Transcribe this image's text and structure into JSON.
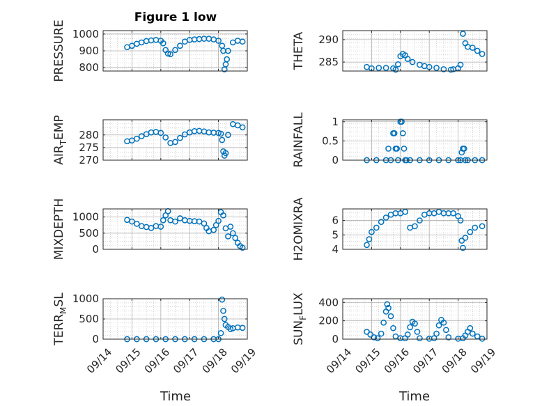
{
  "figure": {
    "title": "Figure 1 low",
    "marker_color": "#0072bd",
    "grid_color": "#b0b0b0",
    "axis_color": "#262626"
  },
  "chart_data": [
    {
      "type": "scatter",
      "ylabel": "PRESSURE",
      "ylabel_sub": "",
      "ylabel_tail": "",
      "ylim": [
        780,
        1020
      ],
      "yticks": [
        "800",
        "900",
        "1000"
      ],
      "ytick_values": [
        800,
        900,
        1000
      ],
      "xlim": [
        "09/14",
        "09/19"
      ],
      "grid": true,
      "x": [
        "09/14 20:00",
        "09/15 00:00",
        "09/15 04:00",
        "09/15 08:00",
        "09/15 12:00",
        "09/15 16:00",
        "09/15 20:00",
        "09/16 00:00",
        "09/16 02:00",
        "09/16 04:00",
        "09/16 06:00",
        "09/16 08:00",
        "09/16 12:00",
        "09/16 16:00",
        "09/16 20:00",
        "09/17 00:00",
        "09/17 04:00",
        "09/17 08:00",
        "09/17 12:00",
        "09/17 16:00",
        "09/17 20:00",
        "09/18 00:00",
        "09/18 03:00",
        "09/18 04:00",
        "09/18 05:00",
        "09/18 06:00",
        "09/18 07:00",
        "09/18 08:00",
        "09/18 12:00",
        "09/18 16:00",
        "09/18 20:00"
      ],
      "y": [
        922,
        930,
        942,
        950,
        958,
        962,
        965,
        960,
        945,
        905,
        884,
        880,
        905,
        930,
        955,
        965,
        968,
        970,
        972,
        972,
        968,
        960,
        930,
        900,
        790,
        820,
        850,
        900,
        950,
        960,
        955
      ]
    },
    {
      "type": "scatter",
      "ylabel": "THETA",
      "ylabel_sub": "",
      "ylabel_tail": "",
      "ylim": [
        283,
        292
      ],
      "yticks": [
        "285",
        "290"
      ],
      "ytick_values": [
        285,
        290
      ],
      "xlim": [
        "09/14",
        "09/19"
      ],
      "grid": true,
      "x": [
        "09/14 20:00",
        "09/15 00:00",
        "09/15 06:00",
        "09/15 12:00",
        "09/15 18:00",
        "09/15 20:00",
        "09/15 22:00",
        "09/16 00:00",
        "09/16 02:00",
        "09/16 04:00",
        "09/16 06:00",
        "09/16 10:00",
        "09/16 16:00",
        "09/16 20:00",
        "09/17 00:00",
        "09/17 06:00",
        "09/17 12:00",
        "09/17 18:00",
        "09/17 20:00",
        "09/18 00:00",
        "09/18 02:00",
        "09/18 04:00",
        "09/18 06:00",
        "09/18 08:00",
        "09/18 12:00",
        "09/18 16:00",
        "09/18 20:00"
      ],
      "y": [
        283.9,
        283.6,
        283.7,
        283.7,
        283.6,
        283.3,
        284.5,
        286.3,
        286.8,
        286.5,
        285.7,
        285.0,
        284.4,
        284.1,
        283.9,
        283.7,
        283.4,
        283.3,
        283.4,
        283.6,
        284.4,
        291.3,
        289.2,
        288.4,
        288.2,
        287.5,
        286.8
      ]
    },
    {
      "type": "scatter",
      "ylabel": "AIR",
      "ylabel_sub": "T",
      "ylabel_tail": "EMP",
      "ylim": [
        270,
        286
      ],
      "yticks": [
        "270",
        "275",
        "280"
      ],
      "ytick_values": [
        270,
        275,
        280
      ],
      "xlim": [
        "09/14",
        "09/19"
      ],
      "grid": true,
      "x": [
        "09/14 20:00",
        "09/15 00:00",
        "09/15 04:00",
        "09/15 08:00",
        "09/15 12:00",
        "09/15 16:00",
        "09/15 20:00",
        "09/16 00:00",
        "09/16 04:00",
        "09/16 08:00",
        "09/16 12:00",
        "09/16 16:00",
        "09/16 20:00",
        "09/17 00:00",
        "09/17 04:00",
        "09/17 08:00",
        "09/17 12:00",
        "09/17 16:00",
        "09/17 20:00",
        "09/18 00:00",
        "09/18 02:00",
        "09/18 03:00",
        "09/18 04:00",
        "09/18 05:00",
        "09/18 06:00",
        "09/18 08:00",
        "09/18 12:00",
        "09/18 16:00",
        "09/18 20:00"
      ],
      "y": [
        277.5,
        277.8,
        278.5,
        279.5,
        280.3,
        281.0,
        281.2,
        280.8,
        279.0,
        276.8,
        277.2,
        278.8,
        280.2,
        281.0,
        281.5,
        281.6,
        281.4,
        281.0,
        280.9,
        280.8,
        280.5,
        278.0,
        273.5,
        271.8,
        272.8,
        280.0,
        284.3,
        283.8,
        283.0
      ]
    },
    {
      "type": "scatter",
      "ylabel": "RAINFALL",
      "ylabel_sub": "",
      "ylabel_tail": "",
      "ylim": [
        0,
        1.05
      ],
      "yticks": [
        "0",
        "0.5",
        "1"
      ],
      "ytick_values": [
        0,
        0.5,
        1
      ],
      "xlim": [
        "09/14",
        "09/19"
      ],
      "grid": true,
      "x": [
        "09/14 20:00",
        "09/15 04:00",
        "09/15 12:00",
        "09/15 14:00",
        "09/15 16:00",
        "09/15 18:00",
        "09/15 19:00",
        "09/15 20:00",
        "09/15 21:00",
        "09/15 22:00",
        "09/16 00:00",
        "09/16 01:00",
        "09/16 02:00",
        "09/16 03:00",
        "09/16 04:00",
        "09/16 05:00",
        "09/16 08:00",
        "09/16 16:00",
        "09/17 00:00",
        "09/17 08:00",
        "09/17 16:00",
        "09/18 00:00",
        "09/18 02:00",
        "09/18 03:00",
        "09/18 04:00",
        "09/18 05:00",
        "09/18 06:00",
        "09/18 08:00",
        "09/18 14:00",
        "09/18 20:00"
      ],
      "y": [
        0,
        0,
        0,
        0.3,
        0,
        0.7,
        0.7,
        0.3,
        0.3,
        0,
        1,
        1,
        0.7,
        0.3,
        0,
        0,
        0,
        0,
        0,
        0,
        0,
        0,
        0,
        0.2,
        0.3,
        0.3,
        0,
        0,
        0,
        0
      ]
    },
    {
      "type": "scatter",
      "ylabel": "MIXDEPTH",
      "ylabel_sub": "",
      "ylabel_tail": "",
      "ylim": [
        0,
        1250
      ],
      "yticks": [
        "0",
        "500",
        "1000"
      ],
      "ytick_values": [
        0,
        500,
        1000
      ],
      "xlim": [
        "09/14",
        "09/19"
      ],
      "grid": true,
      "x": [
        "09/14 20:00",
        "09/15 00:00",
        "09/15 04:00",
        "09/15 08:00",
        "09/15 12:00",
        "09/15 16:00",
        "09/15 20:00",
        "09/16 00:00",
        "09/16 02:00",
        "09/16 04:00",
        "09/16 06:00",
        "09/16 08:00",
        "09/16 12:00",
        "09/16 16:00",
        "09/16 20:00",
        "09/17 00:00",
        "09/17 04:00",
        "09/17 08:00",
        "09/17 12:00",
        "09/17 14:00",
        "09/17 16:00",
        "09/17 20:00",
        "09/17 22:00",
        "09/18 00:00",
        "09/18 02:00",
        "09/18 04:00",
        "09/18 06:00",
        "09/18 08:00",
        "09/18 10:00",
        "09/18 12:00",
        "09/18 14:00",
        "09/18 16:00",
        "09/18 18:00",
        "09/18 20:00"
      ],
      "y": [
        910,
        860,
        790,
        720,
        690,
        660,
        720,
        700,
        900,
        1050,
        1180,
        900,
        860,
        960,
        900,
        880,
        870,
        860,
        800,
        660,
        560,
        600,
        750,
        880,
        1150,
        1050,
        650,
        400,
        700,
        500,
        350,
        200,
        100,
        50
      ]
    },
    {
      "type": "scatter",
      "ylabel": "H2OMIXRA",
      "ylabel_sub": "",
      "ylabel_tail": "",
      "ylim": [
        4,
        6.8
      ],
      "yticks": [
        "4",
        "5",
        "6"
      ],
      "ytick_values": [
        4,
        5,
        6
      ],
      "xlim": [
        "09/14",
        "09/19"
      ],
      "grid": true,
      "x": [
        "09/14 20:00",
        "09/14 22:00",
        "09/15 00:00",
        "09/15 04:00",
        "09/15 08:00",
        "09/15 12:00",
        "09/15 16:00",
        "09/15 20:00",
        "09/16 00:00",
        "09/16 04:00",
        "09/16 08:00",
        "09/16 12:00",
        "09/16 16:00",
        "09/16 20:00",
        "09/17 00:00",
        "09/17 04:00",
        "09/17 08:00",
        "09/17 12:00",
        "09/17 16:00",
        "09/17 20:00",
        "09/18 00:00",
        "09/18 02:00",
        "09/18 03:00",
        "09/18 04:00",
        "09/18 06:00",
        "09/18 10:00",
        "09/18 14:00",
        "09/18 20:00"
      ],
      "y": [
        4.3,
        4.7,
        5.2,
        5.5,
        5.9,
        6.2,
        6.4,
        6.5,
        6.5,
        6.6,
        5.5,
        5.6,
        6.0,
        6.4,
        6.5,
        6.5,
        6.6,
        6.5,
        6.5,
        6.5,
        6.3,
        6.0,
        4.6,
        4.1,
        4.8,
        5.2,
        5.5,
        5.6
      ]
    },
    {
      "type": "scatter",
      "ylabel": "TERR",
      "ylabel_sub": "M",
      "ylabel_tail": "SL",
      "ylim": [
        0,
        1000
      ],
      "yticks": [
        "0",
        "500",
        "1000"
      ],
      "ytick_values": [
        0,
        500,
        1000
      ],
      "xlim": [
        "09/14",
        "09/19"
      ],
      "grid": true,
      "x": [
        "09/14 20:00",
        "09/15 04:00",
        "09/15 12:00",
        "09/15 20:00",
        "09/16 04:00",
        "09/16 12:00",
        "09/16 20:00",
        "09/17 04:00",
        "09/17 12:00",
        "09/17 20:00",
        "09/18 00:00",
        "09/18 02:00",
        "09/18 03:00",
        "09/18 04:00",
        "09/18 05:00",
        "09/18 06:00",
        "09/18 08:00",
        "09/18 10:00",
        "09/18 12:00",
        "09/18 16:00",
        "09/18 20:00"
      ],
      "y": [
        0,
        0,
        0,
        0,
        0,
        0,
        0,
        0,
        0,
        0,
        0,
        150,
        980,
        700,
        500,
        350,
        300,
        250,
        270,
        290,
        280
      ]
    },
    {
      "type": "scatter",
      "ylabel": "SUN",
      "ylabel_sub": "F",
      "ylabel_tail": "LUX",
      "ylim": [
        0,
        440
      ],
      "yticks": [
        "0",
        "200",
        "400"
      ],
      "ytick_values": [
        0,
        200,
        400
      ],
      "xlim": [
        "09/14",
        "09/19"
      ],
      "grid": true,
      "x": [
        "09/14 20:00",
        "09/14 23:00",
        "09/15 02:00",
        "09/15 05:00",
        "09/15 08:00",
        "09/15 10:00",
        "09/15 12:00",
        "09/15 13:00",
        "09/15 14:00",
        "09/15 16:00",
        "09/15 18:00",
        "09/15 20:00",
        "09/16 00:00",
        "09/16 04:00",
        "09/16 06:00",
        "09/16 08:00",
        "09/16 10:00",
        "09/16 12:00",
        "09/16 14:00",
        "09/16 16:00",
        "09/17 00:00",
        "09/17 04:00",
        "09/17 06:00",
        "09/17 08:00",
        "09/17 10:00",
        "09/17 12:00",
        "09/17 14:00",
        "09/17 16:00",
        "09/18 00:00",
        "09/18 04:00",
        "09/18 06:00",
        "09/18 08:00",
        "09/18 10:00",
        "09/18 12:00",
        "09/18 16:00",
        "09/18 20:00"
      ],
      "y": [
        80,
        50,
        20,
        10,
        60,
        180,
        300,
        380,
        340,
        250,
        120,
        30,
        10,
        10,
        50,
        130,
        190,
        170,
        80,
        10,
        5,
        10,
        60,
        150,
        210,
        180,
        100,
        20,
        5,
        10,
        40,
        80,
        120,
        60,
        30,
        5
      ]
    }
  ],
  "x_axis": {
    "ticks": [
      "09/14",
      "09/15",
      "09/16",
      "09/17",
      "09/18",
      "09/19"
    ],
    "label": "Time"
  }
}
